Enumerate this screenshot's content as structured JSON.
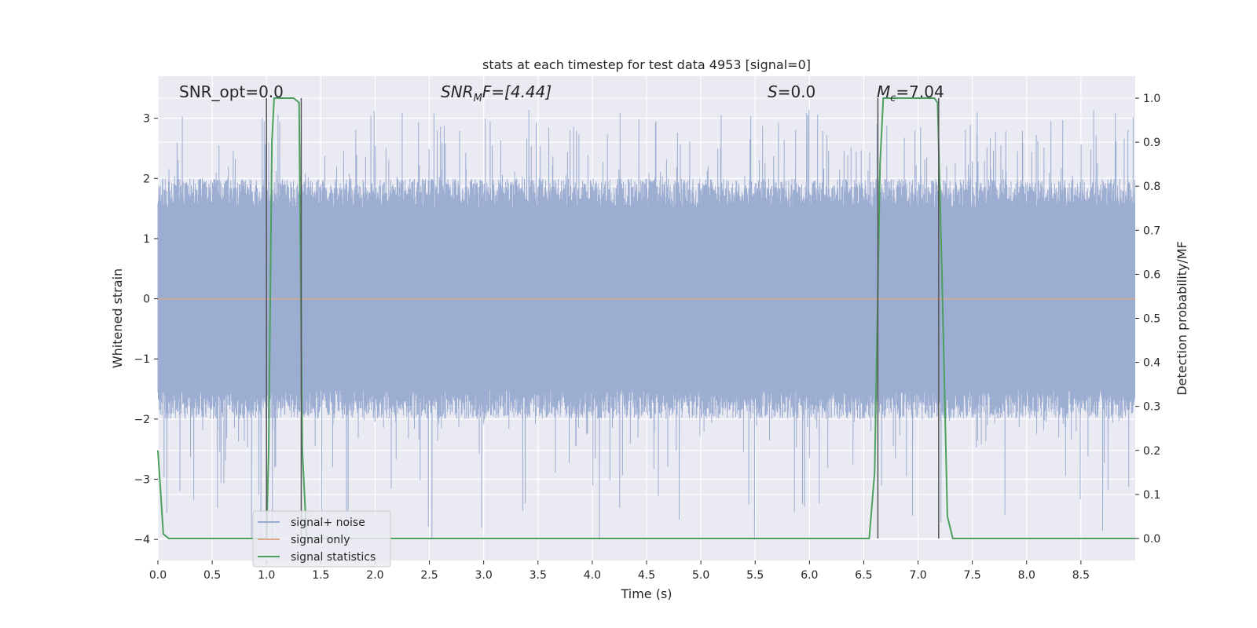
{
  "chart_data": {
    "type": "line",
    "title": "stats at each timestep for test data 4953 [signal=0]",
    "xlabel": "Time (s)",
    "ylabel_left": "Whitened strain",
    "ylabel_right": "Detection probability/MF",
    "xlim": [
      0.0,
      9.0
    ],
    "ylim_left": [
      -4.35,
      3.7
    ],
    "ylim_right": [
      -0.05,
      1.05
    ],
    "x_ticks": [
      "0.0",
      "0.5",
      "1.0",
      "1.5",
      "2.0",
      "2.5",
      "3.0",
      "3.5",
      "4.0",
      "4.5",
      "5.0",
      "5.5",
      "6.0",
      "6.5",
      "7.0",
      "7.5",
      "8.0",
      "8.5"
    ],
    "y_ticks_left": [
      "3",
      "2",
      "1",
      "0",
      "−1",
      "−2",
      "−3",
      "−4"
    ],
    "y_ticks_right": [
      "1.0",
      "0.9",
      "0.8",
      "0.7",
      "0.6",
      "0.5",
      "0.4",
      "0.3",
      "0.2",
      "0.1",
      "0.0"
    ],
    "grid": true,
    "legend_placement": "lower-left",
    "annotations": {
      "snr_opt": "SNR_opt=0.0",
      "snr_mf": "SNR",
      "snr_mf_sub": "M",
      "snr_mf_rest": "F=[4.44]",
      "s_stat": "S",
      "s_stat_rest": "=0.0",
      "mchirp": "M",
      "mchirp_sub": "c",
      "mchirp_rest": "=7.04"
    },
    "series": [
      {
        "name": "signal+ noise",
        "color": "#98aad0",
        "style": "dense noise band",
        "envelope_upper": 2.0,
        "envelope_lower": -2.0,
        "peak_max": 3.15,
        "peak_min": -4.0
      },
      {
        "name": "signal only",
        "color": "#dda98b",
        "x": [
          0.0,
          9.0
        ],
        "y": [
          0.0,
          0.0
        ]
      },
      {
        "name": "signal statistics",
        "color": "#4c9f5f",
        "axis": "right",
        "x": [
          0.0,
          0.05,
          0.1,
          0.15,
          0.2,
          0.5,
          1.0,
          1.02,
          1.05,
          1.07,
          1.1,
          1.25,
          1.3,
          1.33,
          1.37,
          1.4,
          6.55,
          6.6,
          6.65,
          6.68,
          6.7,
          7.15,
          7.18,
          7.22,
          7.27,
          7.32,
          7.4,
          9.0
        ],
        "y": [
          0.2,
          0.01,
          0.0,
          0.0,
          0.0,
          0.0,
          0.0,
          0.2,
          0.9,
          1.0,
          1.0,
          1.0,
          0.99,
          0.2,
          0.0,
          0.0,
          0.0,
          0.15,
          0.85,
          1.0,
          1.0,
          1.0,
          0.99,
          0.6,
          0.05,
          0.0,
          0.0,
          0.0
        ]
      }
    ],
    "vlines": [
      {
        "x": 1.0,
        "color": "#555555"
      },
      {
        "x": 1.32,
        "color": "#555555"
      },
      {
        "x": 6.63,
        "color": "#555555"
      },
      {
        "x": 7.19,
        "color": "#555555"
      }
    ],
    "legend": [
      "signal+ noise",
      "signal only",
      "signal statistics"
    ]
  }
}
